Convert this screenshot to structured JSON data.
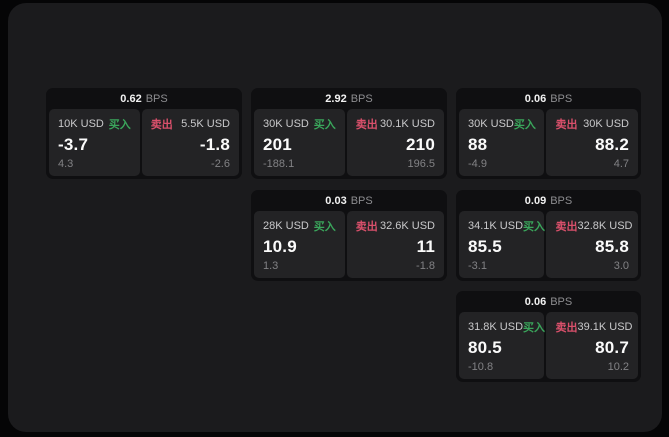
{
  "colors": {
    "buy_green": "#3aa55b",
    "sell_red": "#d9506b",
    "surface_bg": "#1b1b1d",
    "card_bg": "#0f0f11",
    "tile_bg": "#232325"
  },
  "cards": [
    {
      "bps_value": "0.62",
      "bps_unit": "BPS",
      "buy": {
        "amount": "10K USD",
        "side_label": "买入",
        "value": "-3.7",
        "sub_value": "4.3"
      },
      "sell": {
        "side_label": "卖出",
        "amount": "5.5K USD",
        "value": "-1.8",
        "sub_value": "-2.6"
      }
    },
    {
      "bps_value": "2.92",
      "bps_unit": "BPS",
      "buy": {
        "amount": "30K USD",
        "side_label": "买入",
        "value": "201",
        "sub_value": "-188.1"
      },
      "sell": {
        "side_label": "卖出",
        "amount": "30.1K USD",
        "value": "210",
        "sub_value": "196.5"
      }
    },
    {
      "bps_value": "0.06",
      "bps_unit": "BPS",
      "buy": {
        "amount": "30K USD",
        "side_label": "买入",
        "value": "88",
        "sub_value": "-4.9"
      },
      "sell": {
        "side_label": "卖出",
        "amount": "30K USD",
        "value": "88.2",
        "sub_value": "4.7"
      }
    },
    {
      "bps_value": "0.03",
      "bps_unit": "BPS",
      "buy": {
        "amount": "28K USD",
        "side_label": "买入",
        "value": "10.9",
        "sub_value": "1.3"
      },
      "sell": {
        "side_label": "卖出",
        "amount": "32.6K USD",
        "value": "11",
        "sub_value": "-1.8"
      }
    },
    {
      "bps_value": "0.09",
      "bps_unit": "BPS",
      "buy": {
        "amount": "34.1K USD",
        "side_label": "买入",
        "value": "85.5",
        "sub_value": "-3.1"
      },
      "sell": {
        "side_label": "卖出",
        "amount": "32.8K USD",
        "value": "85.8",
        "sub_value": "3.0"
      }
    },
    {
      "bps_value": "0.06",
      "bps_unit": "BPS",
      "buy": {
        "amount": "31.8K USD",
        "side_label": "买入",
        "value": "80.5",
        "sub_value": "-10.8"
      },
      "sell": {
        "side_label": "卖出",
        "amount": "39.1K USD",
        "value": "80.7",
        "sub_value": "10.2"
      }
    }
  ]
}
